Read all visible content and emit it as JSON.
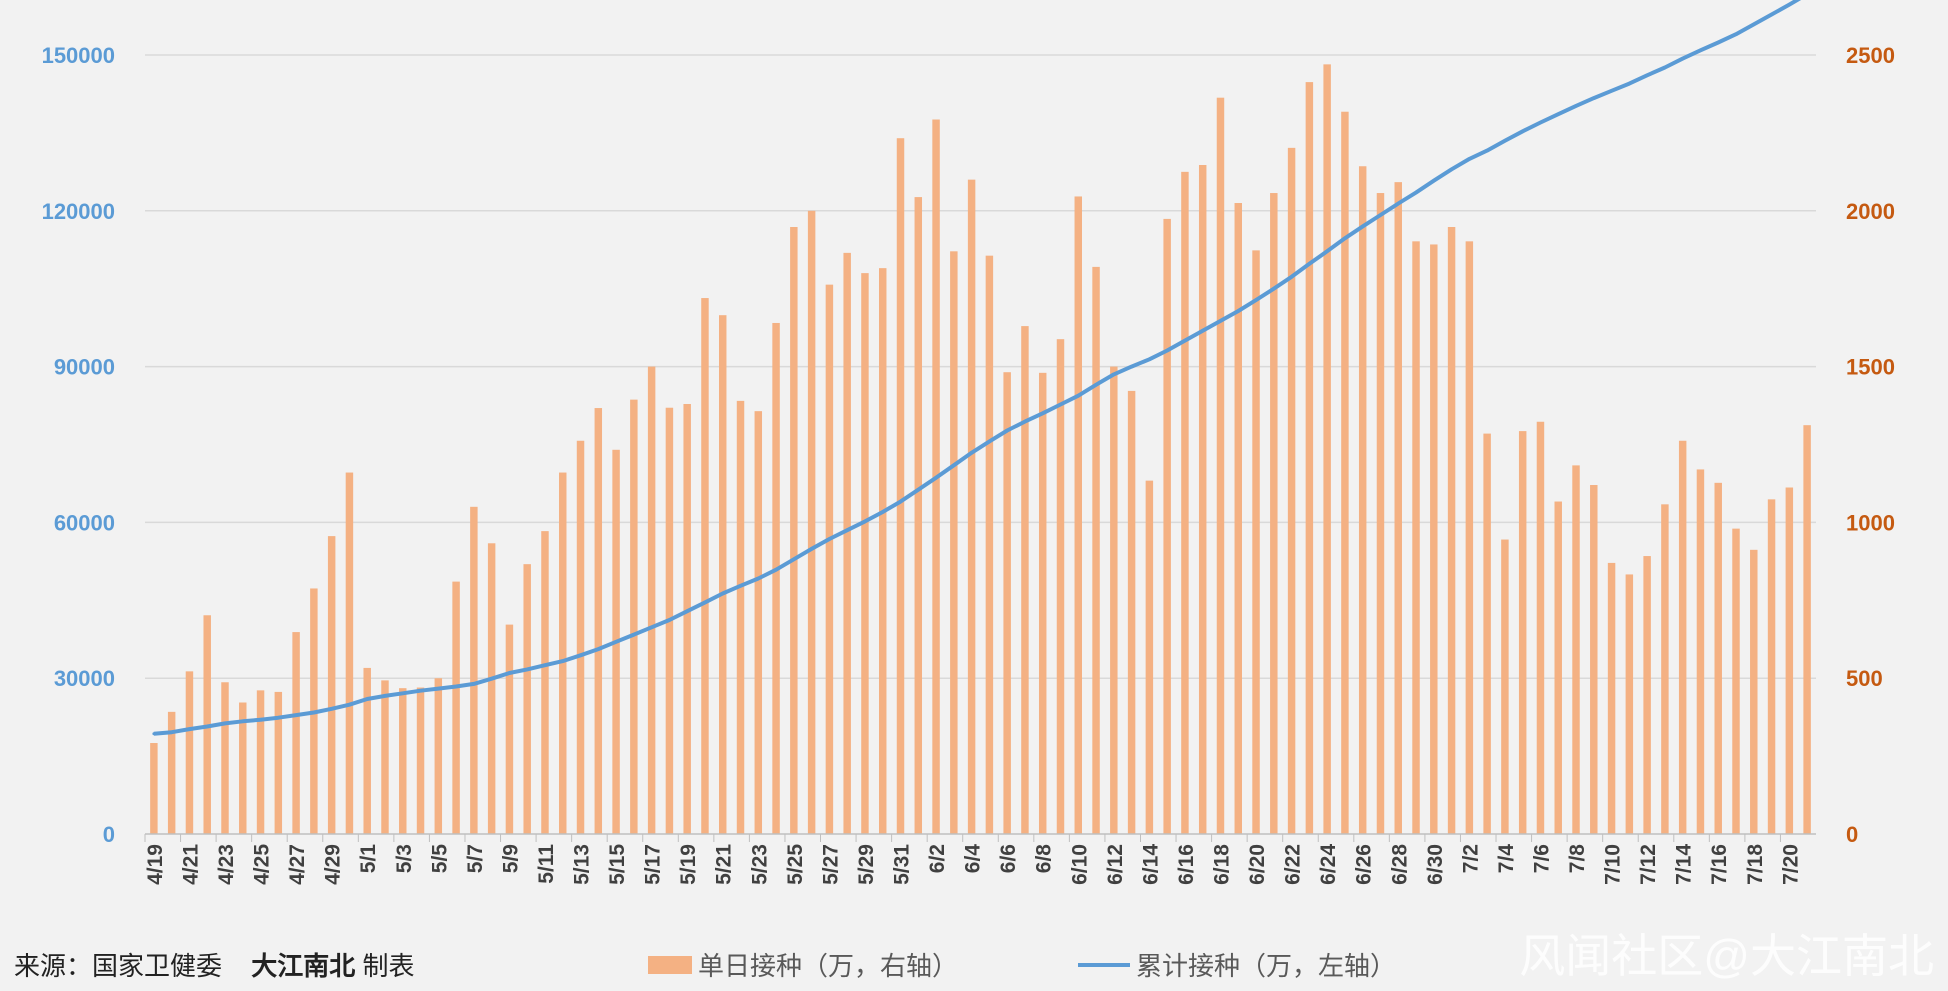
{
  "colors": {
    "bar": "#f4b183",
    "line": "#5b9bd5",
    "left_axis_text": "#5b9bd5",
    "right_axis_text": "#c55a11",
    "grid": "#d9d9d9",
    "background": "#f2f2f2"
  },
  "footer": {
    "source_label": "来源：国家卫健委",
    "maker": "大江南北",
    "maker_suffix": "制表",
    "watermark": "风闻社区@大江南北"
  },
  "chart_data": {
    "type": "bar",
    "y_left": {
      "ticks": [
        "0",
        "30000",
        "60000",
        "90000",
        "120000",
        "150000"
      ],
      "lim": [
        0,
        150000
      ]
    },
    "y_right": {
      "ticks": [
        "0",
        "500",
        "1000",
        "1500",
        "2000",
        "2500"
      ],
      "lim": [
        0,
        2500
      ]
    },
    "x_tick_labels": [
      "4/19",
      "4/21",
      "4/23",
      "4/25",
      "4/27",
      "4/29",
      "5/1",
      "5/3",
      "5/5",
      "5/7",
      "5/9",
      "5/11",
      "5/13",
      "5/15",
      "5/17",
      "5/19",
      "5/21",
      "5/23",
      "5/25",
      "5/27",
      "5/29",
      "5/31",
      "6/2",
      "6/4",
      "6/6",
      "6/8",
      "6/10",
      "6/12",
      "6/14",
      "6/16",
      "6/18",
      "6/20",
      "6/22",
      "6/24",
      "6/26",
      "6/28",
      "6/30",
      "7/2",
      "7/4",
      "7/6",
      "7/8",
      "7/10",
      "7/12",
      "7/14",
      "7/16",
      "7/18",
      "7/20"
    ],
    "series": [
      {
        "name": "单日接种（万，右轴）",
        "type": "bar",
        "axis": "right",
        "values": [
          292,
          392,
          522,
          702,
          487,
          422,
          461,
          456,
          648,
          788,
          956,
          1160,
          533,
          493,
          468,
          470,
          500,
          810,
          1050,
          933,
          672,
          866,
          972,
          1160,
          1262,
          1367,
          1233,
          1394,
          1500,
          1368,
          1380,
          1720,
          1665,
          1390,
          1357,
          1640,
          1948,
          2000,
          1763,
          1865,
          1800,
          1816,
          2233,
          2044,
          2293,
          1870,
          2100,
          1856,
          1482,
          1630,
          1480,
          1588,
          2046,
          1820,
          1500,
          1422,
          1134,
          1974,
          2125,
          2147,
          2363,
          2025,
          1873,
          2057,
          2202,
          2413,
          2470,
          2318,
          2143,
          2057,
          2092,
          1902,
          1892,
          1948,
          1902,
          1285,
          945,
          1293,
          1323,
          1067,
          1183,
          1120,
          870,
          833,
          892,
          1058,
          1262,
          1170,
          1127,
          980,
          912,
          1074,
          1112,
          1312
        ]
      },
      {
        "name": "累计接种（万，左轴）",
        "type": "line",
        "axis": "left",
        "values": [
          19300,
          19600,
          20200,
          20700,
          21300,
          21700,
          22000,
          22400,
          22900,
          23400,
          24100,
          24900,
          26000,
          26600,
          27100,
          27600,
          28000,
          28400,
          28900,
          29900,
          31000,
          31700,
          32500,
          33300,
          34400,
          35600,
          37000,
          38400,
          39800,
          41200,
          42900,
          44600,
          46300,
          47800,
          49200,
          50900,
          52900,
          54900,
          56800,
          58500,
          60200,
          62000,
          64000,
          66300,
          68600,
          71000,
          73400,
          75600,
          77700,
          79400,
          81000,
          82700,
          84400,
          86500,
          88500,
          90000,
          91400,
          93100,
          95000,
          96900,
          98800,
          100700,
          102800,
          105000,
          107300,
          109800,
          112200,
          114700,
          117000,
          119200,
          121400,
          123500,
          125800,
          128000,
          130000,
          131600,
          133500,
          135300,
          137000,
          138600,
          140200,
          141700,
          143100,
          144500,
          146100,
          147600,
          149300,
          150900,
          152400,
          154000,
          155900,
          157800,
          159700,
          161700
        ]
      }
    ]
  }
}
